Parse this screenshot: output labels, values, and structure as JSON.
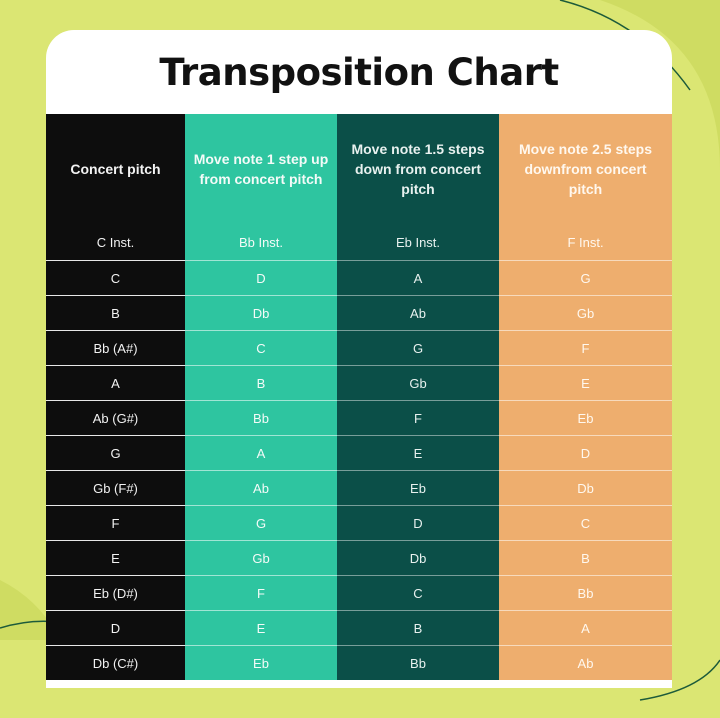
{
  "title": "Transposition Chart",
  "colors": {
    "background": "#dbe673",
    "col_concert": "#0d0d0d",
    "col_bb": "#2ec5a0",
    "col_eb": "#0b4f48",
    "col_f": "#eeae6e"
  },
  "headers": [
    "Concert pitch",
    "Move note 1 step up from concert pitch",
    "Move note 1.5 steps down from concert pitch",
    "Move note 2.5 steps downfrom concert pitch"
  ],
  "rows": [
    [
      "C Inst.",
      "Bb Inst.",
      "Eb Inst.",
      "F Inst."
    ],
    [
      "C",
      "D",
      "A",
      "G"
    ],
    [
      "B",
      "Db",
      "Ab",
      "Gb"
    ],
    [
      "Bb (A#)",
      "C",
      "G",
      "F"
    ],
    [
      "A",
      "B",
      "Gb",
      "E"
    ],
    [
      "Ab (G#)",
      "Bb",
      "F",
      "Eb"
    ],
    [
      "G",
      "A",
      "E",
      "D"
    ],
    [
      "Gb (F#)",
      "Ab",
      "Eb",
      "Db"
    ],
    [
      "F",
      "G",
      "D",
      "C"
    ],
    [
      "E",
      "Gb",
      "Db",
      "B"
    ],
    [
      "Eb (D#)",
      "F",
      "C",
      "Bb"
    ],
    [
      "D",
      "E",
      "B",
      "A"
    ],
    [
      "Db (C#)",
      "Eb",
      "Bb",
      "Ab"
    ]
  ]
}
